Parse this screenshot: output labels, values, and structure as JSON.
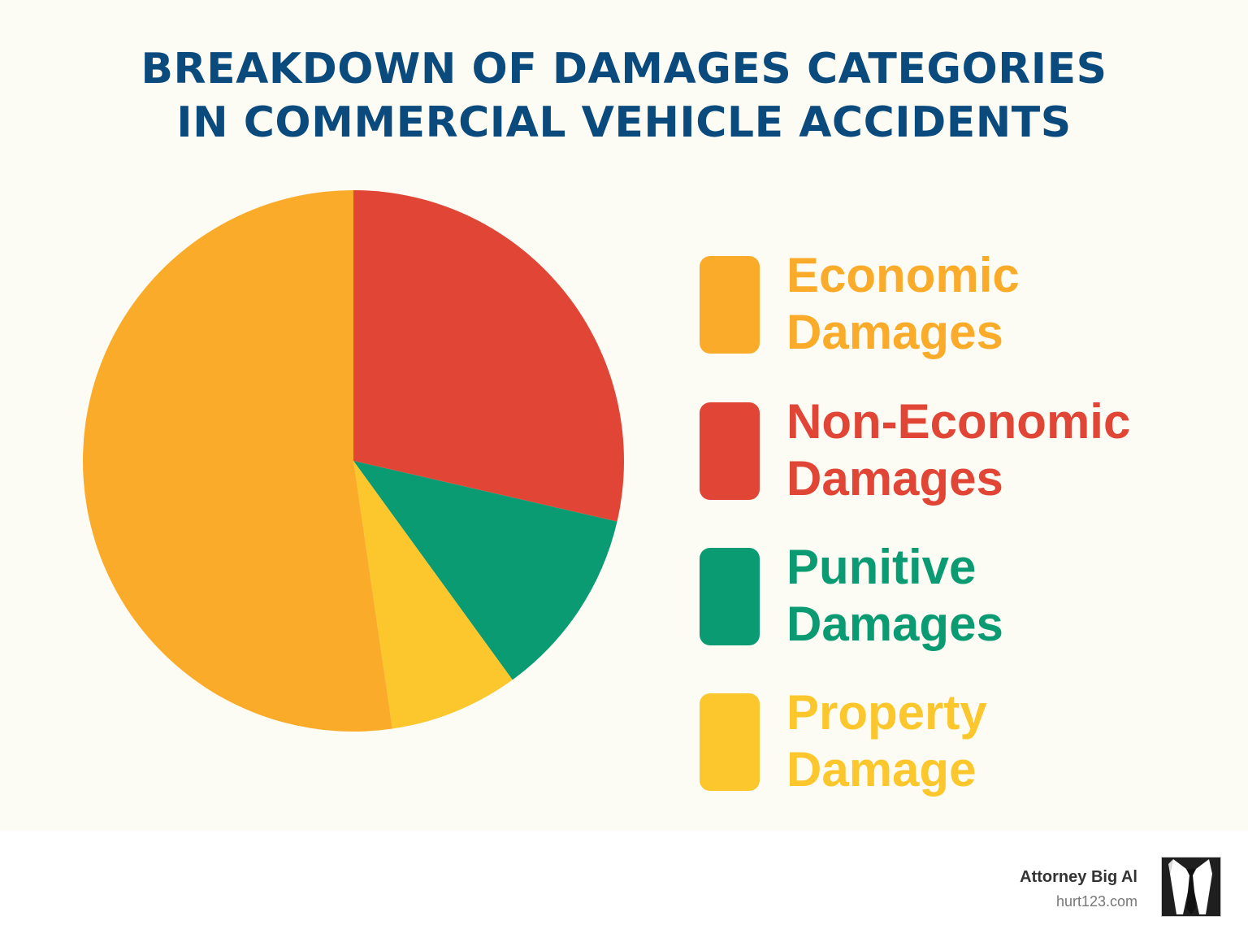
{
  "title": {
    "line1": "BREAKDOWN OF DAMAGES CATEGORIES",
    "line2": "IN COMMERCIAL VEHICLE ACCIDENTS",
    "color": "#0b4a7d"
  },
  "legend": {
    "items": [
      {
        "line1": "Economic",
        "line2": "Damages",
        "color": "#fbab2a"
      },
      {
        "line1": "Non-Economic",
        "line2": "Damages",
        "color": "#e04535"
      },
      {
        "line1": "Punitive",
        "line2": "Damages",
        "color": "#0b9b72"
      },
      {
        "line1": "Property",
        "line2": "Damage",
        "color": "#fcc72c"
      }
    ]
  },
  "branding": {
    "name": "Attorney Big Al",
    "url": "hurt123.com",
    "logo_icon": "suit-and-tie-icon"
  },
  "chart_data": {
    "type": "pie",
    "title": "Breakdown of Damages Categories in Commercial Vehicle Accidents",
    "categories": [
      "Economic Damages",
      "Non-Economic Damages",
      "Punitive Damages",
      "Property Damage"
    ],
    "values": [
      52.3,
      28.6,
      11.4,
      7.7
    ],
    "colors": [
      "#fbab2a",
      "#e04535",
      "#0b9b72",
      "#fcc72c"
    ],
    "start_angle": "12 o'clock, clockwise order: Non-Economic, Punitive, Property, Economic",
    "legend_position": "right"
  }
}
